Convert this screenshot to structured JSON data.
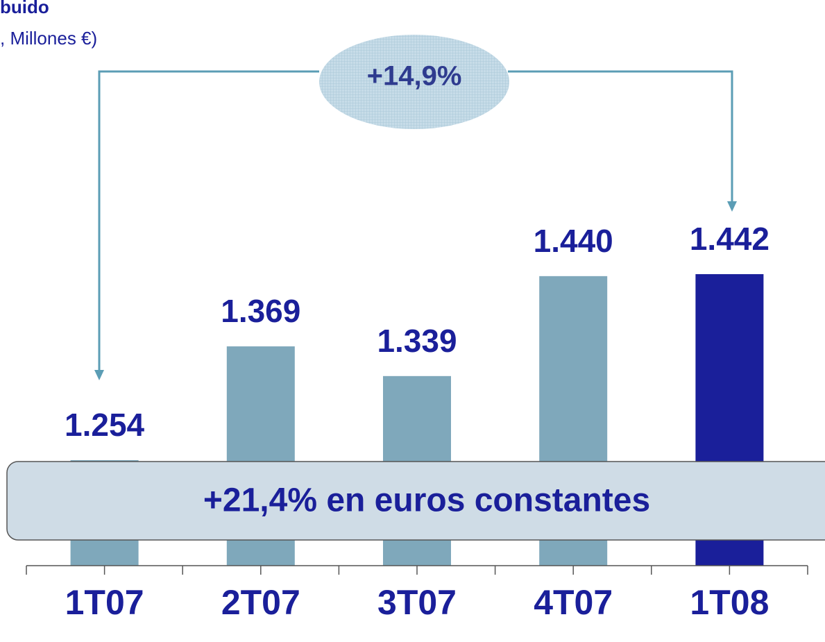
{
  "chart_data": {
    "type": "bar",
    "title": "buido",
    "subtitle": ", Millones €)",
    "categories": [
      "1T07",
      "2T07",
      "3T07",
      "4T07",
      "1T08"
    ],
    "values": [
      1254,
      1369,
      1339,
      1440,
      1442
    ],
    "value_labels": [
      "1.254",
      "1.369",
      "1.339",
      "1.440",
      "1.442"
    ],
    "colors": [
      "#7fa8bb",
      "#7fa8bb",
      "#7fa8bb",
      "#7fa8bb",
      "#1a1f9a"
    ],
    "annotations": [
      "+14,9%",
      "+21,4% en euros constantes"
    ]
  }
}
